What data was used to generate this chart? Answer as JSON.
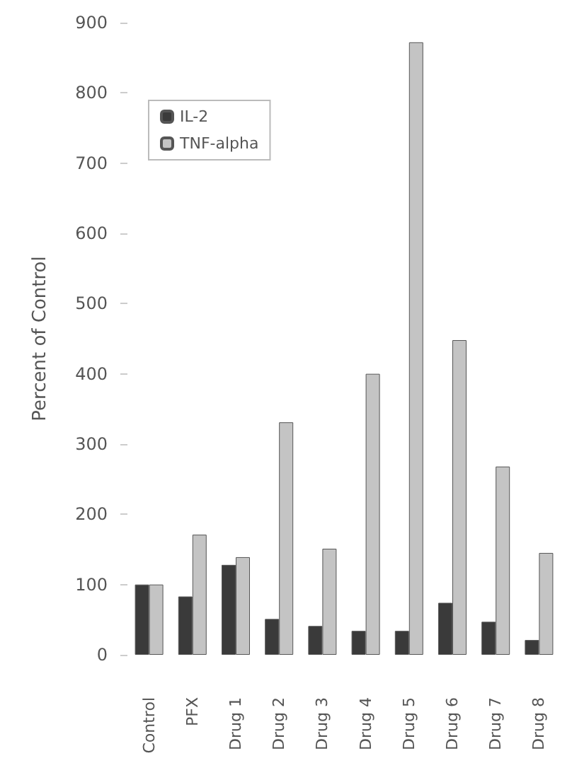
{
  "chart_data": {
    "type": "bar",
    "ylabel": "Percent of Control",
    "categories": [
      "Control",
      "PFX",
      "Drug 1",
      "Drug 2",
      "Drug 3",
      "Drug 4",
      "Drug 5",
      "Drug 6",
      "Drug 7",
      "Drug 8"
    ],
    "series": [
      {
        "name": "IL-2",
        "color": "#3a3a3a",
        "values": [
          100,
          83,
          128,
          51,
          41,
          34,
          34,
          74,
          47,
          21
        ]
      },
      {
        "name": "TNF-alpha",
        "color": "#c4c4c4",
        "values": [
          100,
          171,
          139,
          331,
          151,
          400,
          872,
          448,
          268,
          145
        ]
      }
    ],
    "ylim": [
      0,
      900
    ],
    "yticks": [
      0,
      100,
      200,
      300,
      400,
      500,
      600,
      700,
      800,
      900
    ],
    "legend": "top left"
  }
}
